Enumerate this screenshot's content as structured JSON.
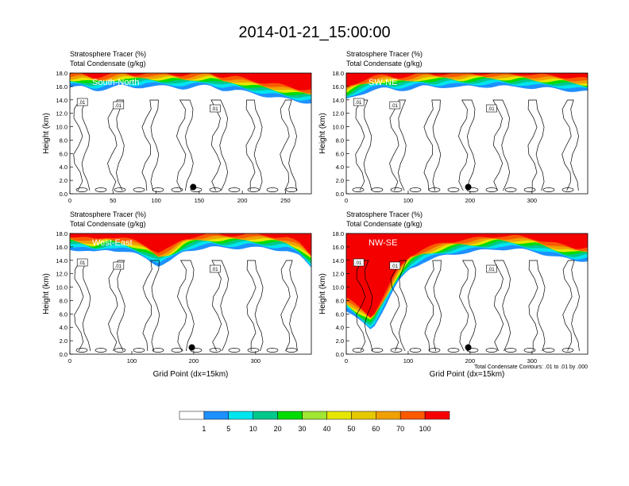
{
  "title": "2014-01-21_15:00:00",
  "panel_subtitle_1": "Stratosphere Tracer   (%)",
  "panel_subtitle_2": "Total Condensate   (g/kg)",
  "contour_note": "Total Condensate Contours: .01 to .01 by .000",
  "contour_label": ".01",
  "xlabel": "Grid Point (dx=15km)",
  "ylabel": "Height (km)",
  "colors": {
    "levels": [
      "#ffffff",
      "#1e90ff",
      "#00e5ee",
      "#00c88c",
      "#00dc00",
      "#a0e632",
      "#e6e600",
      "#e6c800",
      "#f0a000",
      "#fa5a00",
      "#f50000"
    ]
  },
  "chart_data": [
    {
      "type": "heatmap",
      "panel": "South-North",
      "xlim": [
        0,
        280
      ],
      "ylim": [
        0,
        18
      ],
      "xticks": [
        0,
        50,
        100,
        150,
        200,
        250
      ],
      "yticks": [
        0.0,
        2.0,
        4.0,
        6.0,
        8.0,
        10.0,
        12.0,
        14.0,
        16.0,
        18.0
      ],
      "tropopause_km": [
        16.4,
        16.4,
        16.0,
        16.3,
        16.6,
        16.4,
        16.6,
        16.5,
        16.5,
        16.3,
        16.5,
        16.6,
        16.1,
        16.0,
        15.6,
        15.3,
        15.0,
        14.6,
        14.3,
        14.2
      ],
      "marker": {
        "x": 143,
        "y": 1.0
      }
    },
    {
      "type": "heatmap",
      "panel": "SW-NE",
      "xlim": [
        0,
        390
      ],
      "ylim": [
        0,
        18
      ],
      "xticks": [
        0,
        100,
        200,
        300
      ],
      "yticks": [
        0.0,
        2.0,
        4.0,
        6.0,
        8.0,
        10.0,
        12.0,
        14.0,
        16.0,
        18.0
      ],
      "tropopause_km": [
        14.5,
        15.4,
        16.0,
        16.2,
        16.0,
        16.2,
        16.5,
        16.4,
        16.6,
        16.4,
        16.5,
        16.6,
        16.6,
        16.4,
        16.5,
        16.3,
        16.2,
        16.1,
        15.9,
        15.7
      ],
      "marker": {
        "x": 197,
        "y": 1.0
      }
    },
    {
      "type": "heatmap",
      "panel": "West-East",
      "xlim": [
        0,
        390
      ],
      "ylim": [
        0,
        18
      ],
      "xticks": [
        0,
        100,
        200,
        300
      ],
      "yticks": [
        0.0,
        2.0,
        4.0,
        6.0,
        8.0,
        10.0,
        12.0,
        14.0,
        16.0,
        18.0
      ],
      "tropopause_km": [
        16.3,
        16.0,
        15.6,
        16.2,
        16.0,
        15.5,
        14.8,
        13.8,
        14.5,
        15.8,
        16.3,
        16.5,
        16.3,
        16.4,
        16.5,
        16.3,
        16.2,
        16.1,
        15.2,
        13.5
      ],
      "marker": {
        "x": 197,
        "y": 1.0
      }
    },
    {
      "type": "heatmap",
      "panel": "NW-SE",
      "xlim": [
        0,
        390
      ],
      "ylim": [
        0,
        18
      ],
      "xticks": [
        0,
        100,
        200,
        300
      ],
      "yticks": [
        0.0,
        2.0,
        4.0,
        6.0,
        8.0,
        10.0,
        12.0,
        14.0,
        16.0,
        18.0
      ],
      "tropopause_km": [
        7.0,
        5.5,
        4.2,
        7.5,
        11.0,
        13.3,
        14.3,
        14.8,
        15.3,
        15.7,
        15.8,
        16.0,
        16.3,
        16.2,
        16.0,
        15.8,
        15.3,
        14.8,
        14.5,
        14.6
      ],
      "marker": {
        "x": 197,
        "y": 1.0
      }
    }
  ],
  "colorbar": {
    "labels": [
      "1",
      "5",
      "10",
      "20",
      "30",
      "40",
      "50",
      "60",
      "70",
      "100"
    ]
  }
}
